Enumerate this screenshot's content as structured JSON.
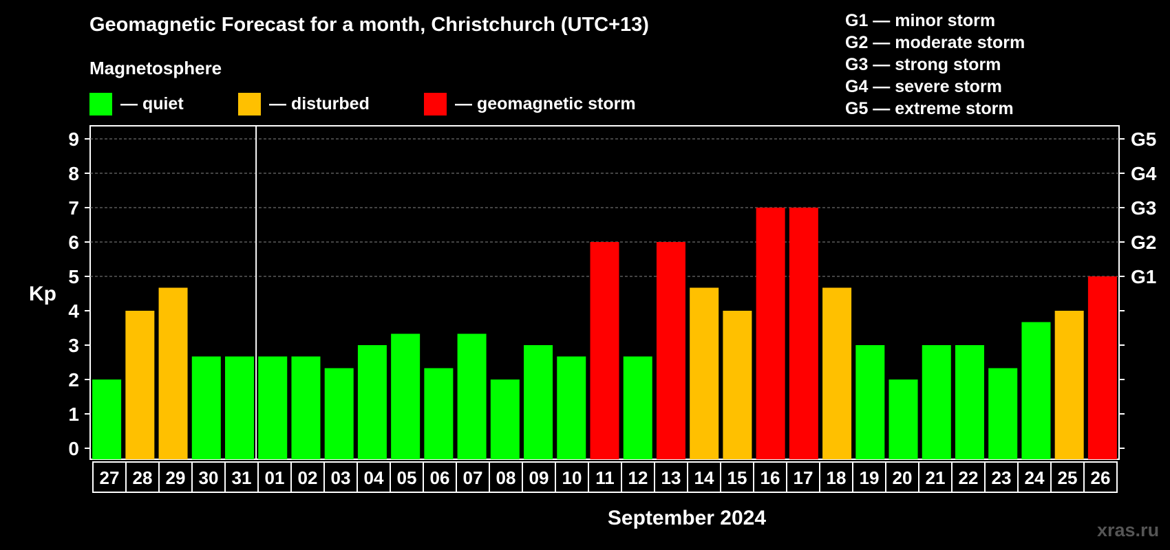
{
  "title": "Geomagnetic Forecast for a month, Christchurch (UTC+13)",
  "subtitle": "Magnetosphere",
  "legend": [
    {
      "label": "— quiet",
      "color": "#00ff00"
    },
    {
      "label": "— disturbed",
      "color": "#ffc000"
    },
    {
      "label": "— geomagnetic storm",
      "color": "#ff0000"
    }
  ],
  "storm_scale": [
    "G1 — minor storm",
    "G2 — moderate storm",
    "G3 — strong storm",
    "G4 — severe storm",
    "G5 — extreme storm"
  ],
  "watermark": "xras.ru",
  "colors": {
    "quiet": "#00ff00",
    "disturbed": "#ffc000",
    "storm": "#ff0000"
  },
  "chart_data": {
    "type": "bar",
    "title": "Geomagnetic Forecast for a month, Christchurch (UTC+13)",
    "xlabel": "September 2024",
    "ylabel": "Kp",
    "ylim": [
      0,
      9
    ],
    "yticks": [
      "0",
      "1",
      "2",
      "3",
      "4",
      "5",
      "6",
      "7",
      "8",
      "9"
    ],
    "right_axis_labels": [
      {
        "kp": 5,
        "label": "G1"
      },
      {
        "kp": 6,
        "label": "G2"
      },
      {
        "kp": 7,
        "label": "G3"
      },
      {
        "kp": 8,
        "label": "G4"
      },
      {
        "kp": 9,
        "label": "G5"
      }
    ],
    "month_divider_after": "31",
    "categories": [
      "27",
      "28",
      "29",
      "30",
      "31",
      "01",
      "02",
      "03",
      "04",
      "05",
      "06",
      "07",
      "08",
      "09",
      "10",
      "11",
      "12",
      "13",
      "14",
      "15",
      "16",
      "17",
      "18",
      "19",
      "20",
      "21",
      "22",
      "23",
      "24",
      "25",
      "26"
    ],
    "values": [
      2,
      4,
      4.67,
      2.67,
      2.67,
      2.67,
      2.67,
      2.33,
      3,
      3.33,
      2.33,
      3.33,
      2,
      3,
      2.67,
      6,
      2.67,
      6,
      4.67,
      4,
      7,
      7,
      4.67,
      3,
      2,
      3,
      3,
      2.33,
      3.67,
      4,
      5
    ],
    "status": [
      "quiet",
      "disturbed",
      "disturbed",
      "quiet",
      "quiet",
      "quiet",
      "quiet",
      "quiet",
      "quiet",
      "quiet",
      "quiet",
      "quiet",
      "quiet",
      "quiet",
      "quiet",
      "storm",
      "quiet",
      "storm",
      "disturbed",
      "disturbed",
      "storm",
      "storm",
      "disturbed",
      "quiet",
      "quiet",
      "quiet",
      "quiet",
      "quiet",
      "quiet",
      "disturbed",
      "storm"
    ]
  }
}
